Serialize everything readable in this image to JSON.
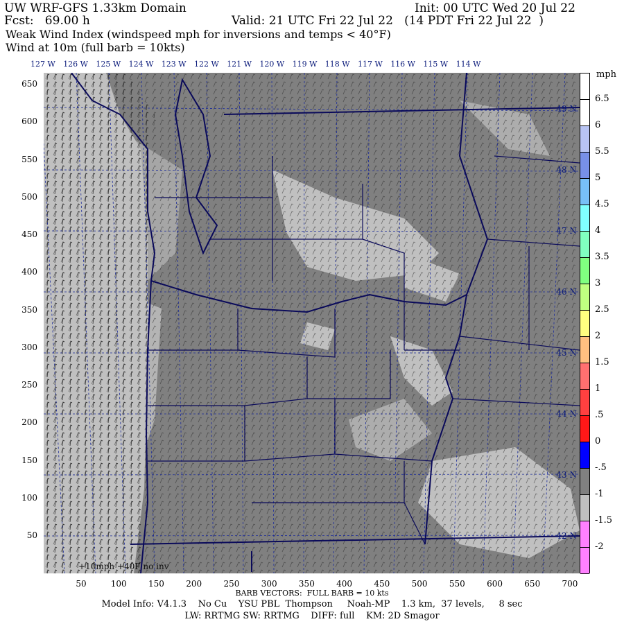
{
  "header": {
    "title": "UW WRF-GFS 1.33km Domain",
    "init": "Init: 00 UTC Wed 20 Jul 22",
    "fcst": "Fcst:   69.00 h",
    "valid": "Valid: 21 UTC Fri 22 Jul 22   (14 PDT Fri 22 Jul 22  )",
    "field": "Weak Wind Index (windspeed mph for inversions and temps < 40°F)",
    "wind": "Wind at 10m (full barb = 10kts)"
  },
  "longitudes": [
    "127 W",
    "126 W",
    "125 W",
    "124 W",
    "123 W",
    "122 W",
    "121 W",
    "120 W",
    "119 W",
    "118 W",
    "117 W",
    "116 W",
    "115 W",
    "114 W"
  ],
  "latitudes": [
    "49 N",
    "48 N",
    "47 N",
    "46 N",
    "45 N",
    "44 N",
    "43 N",
    "42 N"
  ],
  "y_ticks": [
    "650",
    "600",
    "550",
    "500",
    "450",
    "400",
    "350",
    "300",
    "250",
    "200",
    "150",
    "100",
    "50"
  ],
  "x_ticks": [
    "50",
    "100",
    "150",
    "200",
    "250",
    "300",
    "350",
    "400",
    "450",
    "500",
    "550",
    "600",
    "650",
    "700"
  ],
  "map_note": "+10mph +40F no inv",
  "colorbar": {
    "unit": "mph",
    "labels": [
      "6.5",
      "6",
      "5.5",
      "5",
      "4.5",
      "4",
      "3.5",
      "3",
      "2.5",
      "2",
      "1.5",
      "1",
      ".5",
      "0",
      "-.5",
      "-1",
      "-1.5",
      "-2"
    ],
    "colors": [
      "#ffffff",
      "#ffffff",
      "#b8c4f4",
      "#7890e8",
      "#78c0f8",
      "#80ffff",
      "#80ffc0",
      "#80ff80",
      "#c0ff80",
      "#ffff80",
      "#ffc080",
      "#ff7070",
      "#ff4040",
      "#ff1818",
      "#0000ff",
      "#808080",
      "#c0c0c0",
      "#ff80ff",
      "#ff80ff"
    ]
  },
  "footer": {
    "barb": "BARB VECTORS:  FULL BARB = 10 kts",
    "model": "Model Info: V4.1.3    No Cu    YSU PBL  Thompson     Noah-MP    1.3 km,  37 levels,     8 sec",
    "physics": "LW: RRTMG SW: RRTMG    DIFF: full    KM: 2D Smagor"
  }
}
